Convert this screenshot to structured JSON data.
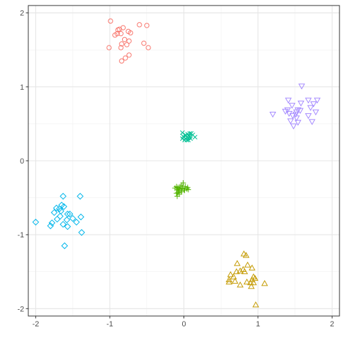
{
  "chart_data": {
    "type": "scatter",
    "title": "",
    "xlabel": "",
    "ylabel": "",
    "xlim": [
      -2.1,
      2.1
    ],
    "ylim": [
      -2.1,
      2.1
    ],
    "x_ticks": [
      -2,
      -1,
      0,
      1,
      2
    ],
    "y_ticks": [
      -2,
      -1,
      0,
      1,
      2
    ],
    "x_tick_labels": [
      "-2",
      "-1",
      "0",
      "1",
      "2"
    ],
    "y_tick_labels": [
      "-2",
      "-1",
      "0",
      "1",
      "2"
    ],
    "grid": true,
    "legend": "none",
    "series": [
      {
        "marker": "circle",
        "color": "#F8766D",
        "points": [
          [
            -0.99,
            1.89
          ],
          [
            -0.82,
            1.8
          ],
          [
            -0.87,
            1.78
          ],
          [
            -0.89,
            1.77
          ],
          [
            -0.5,
            1.83
          ],
          [
            -0.6,
            1.84
          ],
          [
            -0.75,
            1.75
          ],
          [
            -0.72,
            1.73
          ],
          [
            -0.9,
            1.72
          ],
          [
            -0.85,
            1.72
          ],
          [
            -0.93,
            1.7
          ],
          [
            -0.8,
            1.64
          ],
          [
            -0.74,
            1.62
          ],
          [
            -0.54,
            1.59
          ],
          [
            -0.84,
            1.58
          ],
          [
            -0.77,
            1.57
          ],
          [
            -0.85,
            1.53
          ],
          [
            -1.01,
            1.53
          ],
          [
            -0.48,
            1.53
          ],
          [
            -0.74,
            1.43
          ],
          [
            -0.79,
            1.39
          ],
          [
            -0.84,
            1.35
          ]
        ]
      },
      {
        "marker": "triangle",
        "color": "#C49A00",
        "points": [
          [
            0.81,
            -1.26
          ],
          [
            0.84,
            -1.28
          ],
          [
            0.72,
            -1.39
          ],
          [
            0.86,
            -1.41
          ],
          [
            0.92,
            -1.45
          ],
          [
            0.8,
            -1.47
          ],
          [
            0.76,
            -1.49
          ],
          [
            0.71,
            -1.5
          ],
          [
            0.82,
            -1.5
          ],
          [
            0.63,
            -1.54
          ],
          [
            0.67,
            -1.57
          ],
          [
            0.94,
            -1.57
          ],
          [
            0.96,
            -1.59
          ],
          [
            0.61,
            -1.61
          ],
          [
            0.92,
            -1.61
          ],
          [
            0.69,
            -1.63
          ],
          [
            0.61,
            -1.64
          ],
          [
            0.85,
            -1.64
          ],
          [
            0.9,
            -1.65
          ],
          [
            0.94,
            -1.65
          ],
          [
            1.09,
            -1.66
          ],
          [
            0.76,
            -1.68
          ],
          [
            0.91,
            -1.7
          ],
          [
            0.97,
            -1.95
          ]
        ]
      },
      {
        "marker": "plus",
        "color": "#53B400",
        "points": [
          [
            -0.01,
            -0.3
          ],
          [
            -0.03,
            -0.33
          ],
          [
            -0.1,
            -0.35
          ],
          [
            -0.05,
            -0.35
          ],
          [
            0.02,
            -0.35
          ],
          [
            0.05,
            -0.36
          ],
          [
            -0.08,
            -0.36
          ],
          [
            -0.02,
            -0.37
          ],
          [
            -0.12,
            -0.37
          ],
          [
            0.0,
            -0.38
          ],
          [
            0.04,
            -0.38
          ],
          [
            -0.06,
            -0.38
          ],
          [
            0.06,
            -0.39
          ],
          [
            -0.09,
            -0.39
          ],
          [
            -0.04,
            -0.4
          ],
          [
            0.01,
            -0.4
          ],
          [
            -0.07,
            -0.4
          ],
          [
            -0.03,
            -0.42
          ],
          [
            -0.08,
            -0.43
          ],
          [
            -0.1,
            -0.44
          ],
          [
            -0.06,
            -0.45
          ],
          [
            -0.09,
            -0.48
          ]
        ]
      },
      {
        "marker": "cross",
        "color": "#00C094",
        "points": [
          [
            -0.02,
            0.38
          ],
          [
            0.1,
            0.37
          ],
          [
            0.08,
            0.37
          ],
          [
            0.05,
            0.36
          ],
          [
            0.02,
            0.35
          ],
          [
            0.12,
            0.35
          ],
          [
            0.06,
            0.34
          ],
          [
            0.03,
            0.34
          ],
          [
            -0.01,
            0.33
          ],
          [
            0.08,
            0.33
          ],
          [
            0.04,
            0.32
          ],
          [
            0.0,
            0.32
          ],
          [
            0.15,
            0.32
          ],
          [
            0.06,
            0.31
          ],
          [
            0.02,
            0.3
          ],
          [
            -0.02,
            0.3
          ],
          [
            0.09,
            0.3
          ],
          [
            0.04,
            0.28
          ],
          [
            0.01,
            0.28
          ],
          [
            0.06,
            0.28
          ]
        ]
      },
      {
        "marker": "diamond",
        "color": "#00B6EB",
        "points": [
          [
            -1.63,
            -0.48
          ],
          [
            -1.4,
            -0.48
          ],
          [
            -1.65,
            -0.6
          ],
          [
            -1.62,
            -0.62
          ],
          [
            -1.72,
            -0.64
          ],
          [
            -1.68,
            -0.65
          ],
          [
            -1.66,
            -0.68
          ],
          [
            -1.75,
            -0.7
          ],
          [
            -1.57,
            -0.72
          ],
          [
            -1.54,
            -0.72
          ],
          [
            -1.67,
            -0.75
          ],
          [
            -1.39,
            -0.76
          ],
          [
            -1.5,
            -0.78
          ],
          [
            -1.71,
            -0.79
          ],
          [
            -1.58,
            -0.8
          ],
          [
            -1.45,
            -0.83
          ],
          [
            -2.0,
            -0.83
          ],
          [
            -1.78,
            -0.84
          ],
          [
            -1.63,
            -0.86
          ],
          [
            -1.8,
            -0.88
          ],
          [
            -1.57,
            -0.89
          ],
          [
            -1.38,
            -0.97
          ],
          [
            -1.61,
            -1.15
          ]
        ]
      },
      {
        "marker": "triangle-down",
        "color": "#A58AFF",
        "points": [
          [
            1.59,
            1.01
          ],
          [
            1.8,
            0.82
          ],
          [
            1.68,
            0.82
          ],
          [
            1.41,
            0.82
          ],
          [
            1.58,
            0.78
          ],
          [
            1.75,
            0.77
          ],
          [
            1.46,
            0.75
          ],
          [
            1.71,
            0.72
          ],
          [
            1.4,
            0.69
          ],
          [
            1.54,
            0.69
          ],
          [
            1.57,
            0.68
          ],
          [
            1.37,
            0.67
          ],
          [
            1.52,
            0.66
          ],
          [
            1.78,
            0.66
          ],
          [
            1.42,
            0.64
          ],
          [
            1.2,
            0.63
          ],
          [
            1.51,
            0.63
          ],
          [
            1.47,
            0.61
          ],
          [
            1.68,
            0.61
          ],
          [
            1.52,
            0.58
          ],
          [
            1.44,
            0.54
          ],
          [
            1.73,
            0.53
          ],
          [
            1.54,
            0.52
          ],
          [
            1.48,
            0.47
          ]
        ]
      }
    ]
  }
}
